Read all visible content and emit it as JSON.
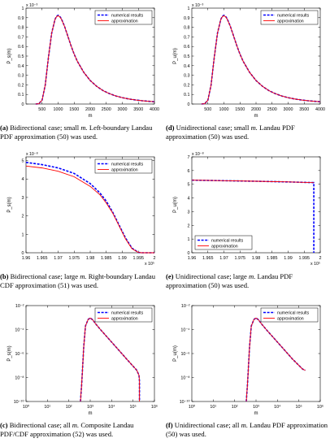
{
  "panels": [
    {
      "id": "a",
      "caption": {
        "letter": "(a)",
        "text": "Bidirectional case; small",
        "var": "m.",
        "rest": "Left-boundary Landau PDF approximation (50) was used."
      },
      "chart_data": {
        "type": "line",
        "scale": "linear",
        "xlabel": "m",
        "ylabel": "P_s(m)",
        "exponent": "x 10⁻³",
        "xlim": [
          0,
          4000
        ],
        "ylim": [
          0,
          1.0
        ],
        "xticks": [
          500,
          1000,
          1500,
          2000,
          2500,
          3000,
          3500,
          4000
        ],
        "xticklabels": [
          "500",
          "1000",
          "1500",
          "2000",
          "2500",
          "3000",
          "3500",
          "4000"
        ],
        "yticks": [
          0,
          0.1,
          0.2,
          0.3,
          0.4,
          0.5,
          0.6,
          0.7,
          0.8,
          0.9,
          1
        ],
        "yticklabels": [
          "0",
          "0.1",
          "0.2",
          "0.3",
          "0.4",
          "0.5",
          "0.6",
          "0.7",
          "0.8",
          "0.9",
          "1"
        ],
        "legend": [
          "numerical results",
          "approximation"
        ],
        "legend_position": "top-right",
        "series": [
          {
            "name": "numerical results",
            "color": "#0000ff",
            "style": "dashed",
            "x": [
              300,
              400,
              500,
              600,
              700,
              800,
              900,
              950,
              1000,
              1050,
              1100,
              1200,
              1300,
              1400,
              1500,
              1600,
              1800,
              2000,
              2200,
              2400,
              2600,
              2800,
              3000,
              3200,
              3400,
              3600,
              3800,
              4000
            ],
            "y": [
              0,
              0.004,
              0.04,
              0.2,
              0.49,
              0.74,
              0.88,
              0.915,
              0.925,
              0.915,
              0.89,
              0.81,
              0.71,
              0.61,
              0.52,
              0.445,
              0.33,
              0.245,
              0.185,
              0.14,
              0.108,
              0.084,
              0.066,
              0.053,
              0.043,
              0.035,
              0.029,
              0.024
            ]
          },
          {
            "name": "approximation",
            "color": "#ff0000",
            "style": "solid",
            "x": [
              300,
              400,
              500,
              600,
              700,
              800,
              900,
              950,
              1000,
              1050,
              1100,
              1200,
              1300,
              1400,
              1500,
              1600,
              1800,
              2000,
              2200,
              2400,
              2600,
              2800,
              3000,
              3200,
              3400,
              3600,
              3800,
              4000
            ],
            "y": [
              0,
              0.004,
              0.04,
              0.2,
              0.49,
              0.74,
              0.88,
              0.91,
              0.92,
              0.91,
              0.885,
              0.81,
              0.71,
              0.61,
              0.52,
              0.445,
              0.33,
              0.245,
              0.185,
              0.14,
              0.108,
              0.084,
              0.066,
              0.053,
              0.043,
              0.035,
              0.029,
              0.024
            ]
          }
        ]
      }
    },
    {
      "id": "d",
      "caption": {
        "letter": "(d)",
        "text": "Unidirectional case; small",
        "var": "m.",
        "rest": "Landau PDF approximation (50) was used."
      },
      "chart_data": {
        "type": "line",
        "scale": "linear",
        "xlabel": "m",
        "ylabel": "P_u(m)",
        "exponent": "x 10⁻³",
        "xlim": [
          0,
          4000
        ],
        "ylim": [
          0,
          1.0
        ],
        "xticks": [
          500,
          1000,
          1500,
          2000,
          2500,
          3000,
          3500,
          4000
        ],
        "xticklabels": [
          "500",
          "1000",
          "1500",
          "2000",
          "2500",
          "3000",
          "3500",
          "4000"
        ],
        "yticks": [
          0,
          0.1,
          0.2,
          0.3,
          0.4,
          0.5,
          0.6,
          0.7,
          0.8,
          0.9,
          1
        ],
        "yticklabels": [
          "0",
          "0.1",
          "0.2",
          "0.3",
          "0.4",
          "0.5",
          "0.6",
          "0.7",
          "0.8",
          "0.9",
          "1"
        ],
        "legend": [
          "numerical results",
          "approximation"
        ],
        "legend_position": "top-right",
        "series": [
          {
            "name": "numerical results",
            "color": "#0000ff",
            "style": "dashed",
            "x": [
              300,
              400,
              500,
              600,
              700,
              800,
              900,
              950,
              1000,
              1050,
              1100,
              1200,
              1300,
              1400,
              1500,
              1600,
              1800,
              2000,
              2200,
              2400,
              2600,
              2800,
              3000,
              3200,
              3400,
              3600,
              3800,
              4000
            ],
            "y": [
              0,
              0.004,
              0.04,
              0.2,
              0.49,
              0.74,
              0.88,
              0.915,
              0.925,
              0.915,
              0.89,
              0.81,
              0.71,
              0.61,
              0.52,
              0.445,
              0.33,
              0.245,
              0.185,
              0.14,
              0.108,
              0.084,
              0.066,
              0.053,
              0.043,
              0.035,
              0.029,
              0.024
            ]
          },
          {
            "name": "approximation",
            "color": "#ff0000",
            "style": "solid",
            "x": [
              300,
              400,
              500,
              600,
              700,
              800,
              900,
              950,
              1000,
              1050,
              1100,
              1200,
              1300,
              1400,
              1500,
              1600,
              1800,
              2000,
              2200,
              2400,
              2600,
              2800,
              3000,
              3200,
              3400,
              3600,
              3800,
              4000
            ],
            "y": [
              0,
              0.004,
              0.04,
              0.2,
              0.49,
              0.74,
              0.88,
              0.91,
              0.92,
              0.91,
              0.885,
              0.81,
              0.71,
              0.61,
              0.52,
              0.445,
              0.33,
              0.245,
              0.185,
              0.14,
              0.108,
              0.084,
              0.066,
              0.053,
              0.043,
              0.035,
              0.029,
              0.024
            ]
          }
        ]
      }
    },
    {
      "id": "b",
      "caption": {
        "letter": "(b)",
        "text": "Bidirectional case; large",
        "var": "m.",
        "rest": "Right-boundary Landau CDF approximation (51) was used."
      },
      "chart_data": {
        "type": "line",
        "scale": "linear",
        "xlabel": "",
        "ylabel": "P_s(m)",
        "exponent": "x 10⁻⁸",
        "x_exponent": "x 10⁵",
        "xlim": [
          1.96,
          2.0
        ],
        "ylim": [
          0,
          5.2
        ],
        "xticks": [
          1.96,
          1.965,
          1.97,
          1.975,
          1.98,
          1.985,
          1.99,
          1.995,
          2.0
        ],
        "xticklabels": [
          "1.96",
          "1.965",
          "1.97",
          "1.975",
          "1.98",
          "1.985",
          "1.99",
          "1.995",
          "2"
        ],
        "yticks": [
          0,
          1,
          2,
          3,
          4,
          5
        ],
        "yticklabels": [
          "0",
          "1",
          "2",
          "3",
          "4",
          "5"
        ],
        "legend": [
          "numerical results",
          "approximation"
        ],
        "legend_position": "top-right",
        "series": [
          {
            "name": "numerical results",
            "color": "#0000ff",
            "style": "dashed",
            "x": [
              1.96,
              1.965,
              1.97,
              1.975,
              1.98,
              1.983,
              1.985,
              1.987,
              1.989,
              1.991,
              1.993,
              1.995,
              1.996,
              2.0
            ],
            "y": [
              4.9,
              4.78,
              4.6,
              4.3,
              3.75,
              3.25,
              2.8,
              2.2,
              1.5,
              0.8,
              0.25,
              0.02,
              0,
              0
            ]
          },
          {
            "name": "approximation",
            "color": "#ff0000",
            "style": "solid",
            "x": [
              1.96,
              1.965,
              1.97,
              1.975,
              1.98,
              1.983,
              1.985,
              1.987,
              1.989,
              1.991,
              1.993,
              1.995,
              1.996,
              2.0
            ],
            "y": [
              4.7,
              4.6,
              4.42,
              4.12,
              3.6,
              3.15,
              2.7,
              2.15,
              1.45,
              0.75,
              0.22,
              0.02,
              0,
              0
            ]
          }
        ]
      }
    },
    {
      "id": "e",
      "caption": {
        "letter": "(e)",
        "text": "Unidirectional case; large",
        "var": "m.",
        "rest": "Landau PDF approximation (50) was used."
      },
      "chart_data": {
        "type": "line",
        "scale": "linear",
        "xlabel": "",
        "ylabel": "P_u(m)",
        "exponent": "x 10⁻⁸",
        "x_exponent": "x 10⁵",
        "xlim": [
          1.96,
          2.0
        ],
        "ylim": [
          0,
          7
        ],
        "xticks": [
          1.96,
          1.965,
          1.97,
          1.975,
          1.98,
          1.985,
          1.99,
          1.995,
          2.0
        ],
        "xticklabels": [
          "1.96",
          "1.965",
          "1.97",
          "1.975",
          "1.98",
          "1.985",
          "1.99",
          "1.995",
          "2"
        ],
        "yticks": [
          0,
          1,
          2,
          3,
          4,
          5,
          6,
          7
        ],
        "yticklabels": [
          "0",
          "1",
          "2",
          "3",
          "4",
          "5",
          "6",
          "7"
        ],
        "legend": [
          "numerical results",
          "approximation"
        ],
        "legend_position": "bottom-left",
        "series": [
          {
            "name": "numerical results",
            "color": "#0000ff",
            "style": "dashed",
            "x": [
              1.96,
              1.97,
              1.98,
              1.99,
              1.998,
              1.998
            ],
            "y": [
              5.3,
              5.26,
              5.22,
              5.17,
              5.12,
              0
            ]
          },
          {
            "name": "approximation",
            "color": "#ff0000",
            "style": "solid",
            "x": [
              1.96,
              1.97,
              1.98,
              1.99,
              1.998
            ],
            "y": [
              5.3,
              5.26,
              5.22,
              5.17,
              5.12
            ]
          }
        ]
      }
    },
    {
      "id": "c",
      "caption": {
        "letter": "(c)",
        "text": "Bidirectional case; all",
        "var": "m.",
        "rest": "Composite Landau PDF/CDF approximation (52) was used."
      },
      "chart_data": {
        "type": "line",
        "scale": "loglog",
        "xlabel": "m",
        "ylabel": "P_s(m)",
        "xlim": [
          1,
          1000000
        ],
        "ylim": [
          1e-10,
          0.01
        ],
        "xticks": [
          1,
          10,
          100,
          1000,
          10000,
          100000,
          1000000
        ],
        "xticklabels": [
          "10⁰",
          "10¹",
          "10²",
          "10³",
          "10⁴",
          "10⁵",
          "10⁶"
        ],
        "yticks": [
          1e-10,
          1e-08,
          1e-06,
          0.0001,
          0.01
        ],
        "yticklabels": [
          "10⁻¹⁰",
          "10⁻⁸",
          "10⁻⁶",
          "10⁻⁴",
          "10⁻²"
        ],
        "legend": [
          "numerical results",
          "approximation"
        ],
        "legend_position": "top-right",
        "series": [
          {
            "name": "numerical results",
            "color": "#0000ff",
            "style": "dashed",
            "x": [
              350,
              400,
              500,
              600,
              800,
              1000,
              1300,
              1800,
              3000,
              6000,
              15000,
              50000,
              150000,
              190000,
              200000,
              200000
            ],
            "y": [
              1e-10,
              3e-09,
              4e-06,
              0.0002,
              0.0007,
              0.00092,
              0.00065,
              0.0003,
              0.0001,
              2.5e-05,
              4e-06,
              3.5e-07,
              4e-08,
              1.5e-08,
              5e-09,
              1e-10
            ]
          },
          {
            "name": "approximation",
            "color": "#ff0000",
            "style": "solid",
            "x": [
              350,
              400,
              500,
              600,
              800,
              1000,
              1300,
              1800,
              3000,
              6000,
              15000,
              50000,
              150000,
              190000,
              200000,
              200000
            ],
            "y": [
              1e-10,
              3e-09,
              4e-06,
              0.0002,
              0.0007,
              0.00092,
              0.00065,
              0.0003,
              0.0001,
              2.5e-05,
              4e-06,
              3.5e-07,
              4e-08,
              1.5e-08,
              5e-09,
              1e-10
            ]
          }
        ]
      }
    },
    {
      "id": "f",
      "caption": {
        "letter": "(f)",
        "text": "Unidirectional case; all",
        "var": "m.",
        "rest": "Landau PDF approximation (50) was used."
      },
      "chart_data": {
        "type": "line",
        "scale": "loglog",
        "xlabel": "m",
        "ylabel": "P_u(m)",
        "xlim": [
          1,
          1000000
        ],
        "ylim": [
          1e-10,
          0.01
        ],
        "xticks": [
          1,
          10,
          100,
          1000,
          10000,
          100000,
          1000000
        ],
        "xticklabels": [
          "10⁰",
          "10¹",
          "10²",
          "10³",
          "10⁴",
          "10⁵",
          "10⁶"
        ],
        "yticks": [
          1e-10,
          1e-08,
          1e-06,
          0.0001,
          0.01
        ],
        "yticklabels": [
          "10⁻¹⁰",
          "10⁻⁸",
          "10⁻⁶",
          "10⁻⁴",
          "10⁻²"
        ],
        "legend": [
          "numerical results",
          "approximation"
        ],
        "legend_position": "top-right",
        "series": [
          {
            "name": "numerical results",
            "color": "#0000ff",
            "style": "dashed",
            "x": [
              350,
              400,
              500,
              600,
              800,
              1000,
              1300,
              1800,
              3000,
              6000,
              15000,
              50000,
              150000,
              200000
            ],
            "y": [
              1e-10,
              3e-09,
              4e-06,
              0.0002,
              0.0007,
              0.00092,
              0.00065,
              0.0003,
              0.0001,
              2.5e-05,
              4e-06,
              3.5e-07,
              5e-08,
              4e-08
            ]
          },
          {
            "name": "approximation",
            "color": "#ff0000",
            "style": "solid",
            "x": [
              350,
              400,
              500,
              600,
              800,
              1000,
              1300,
              1800,
              3000,
              6000,
              15000,
              50000,
              150000,
              200000
            ],
            "y": [
              1e-10,
              3e-09,
              4e-06,
              0.0002,
              0.0007,
              0.00092,
              0.00065,
              0.0003,
              0.0001,
              2.5e-05,
              4e-06,
              3.5e-07,
              5e-08,
              4e-08
            ]
          }
        ]
      }
    }
  ]
}
